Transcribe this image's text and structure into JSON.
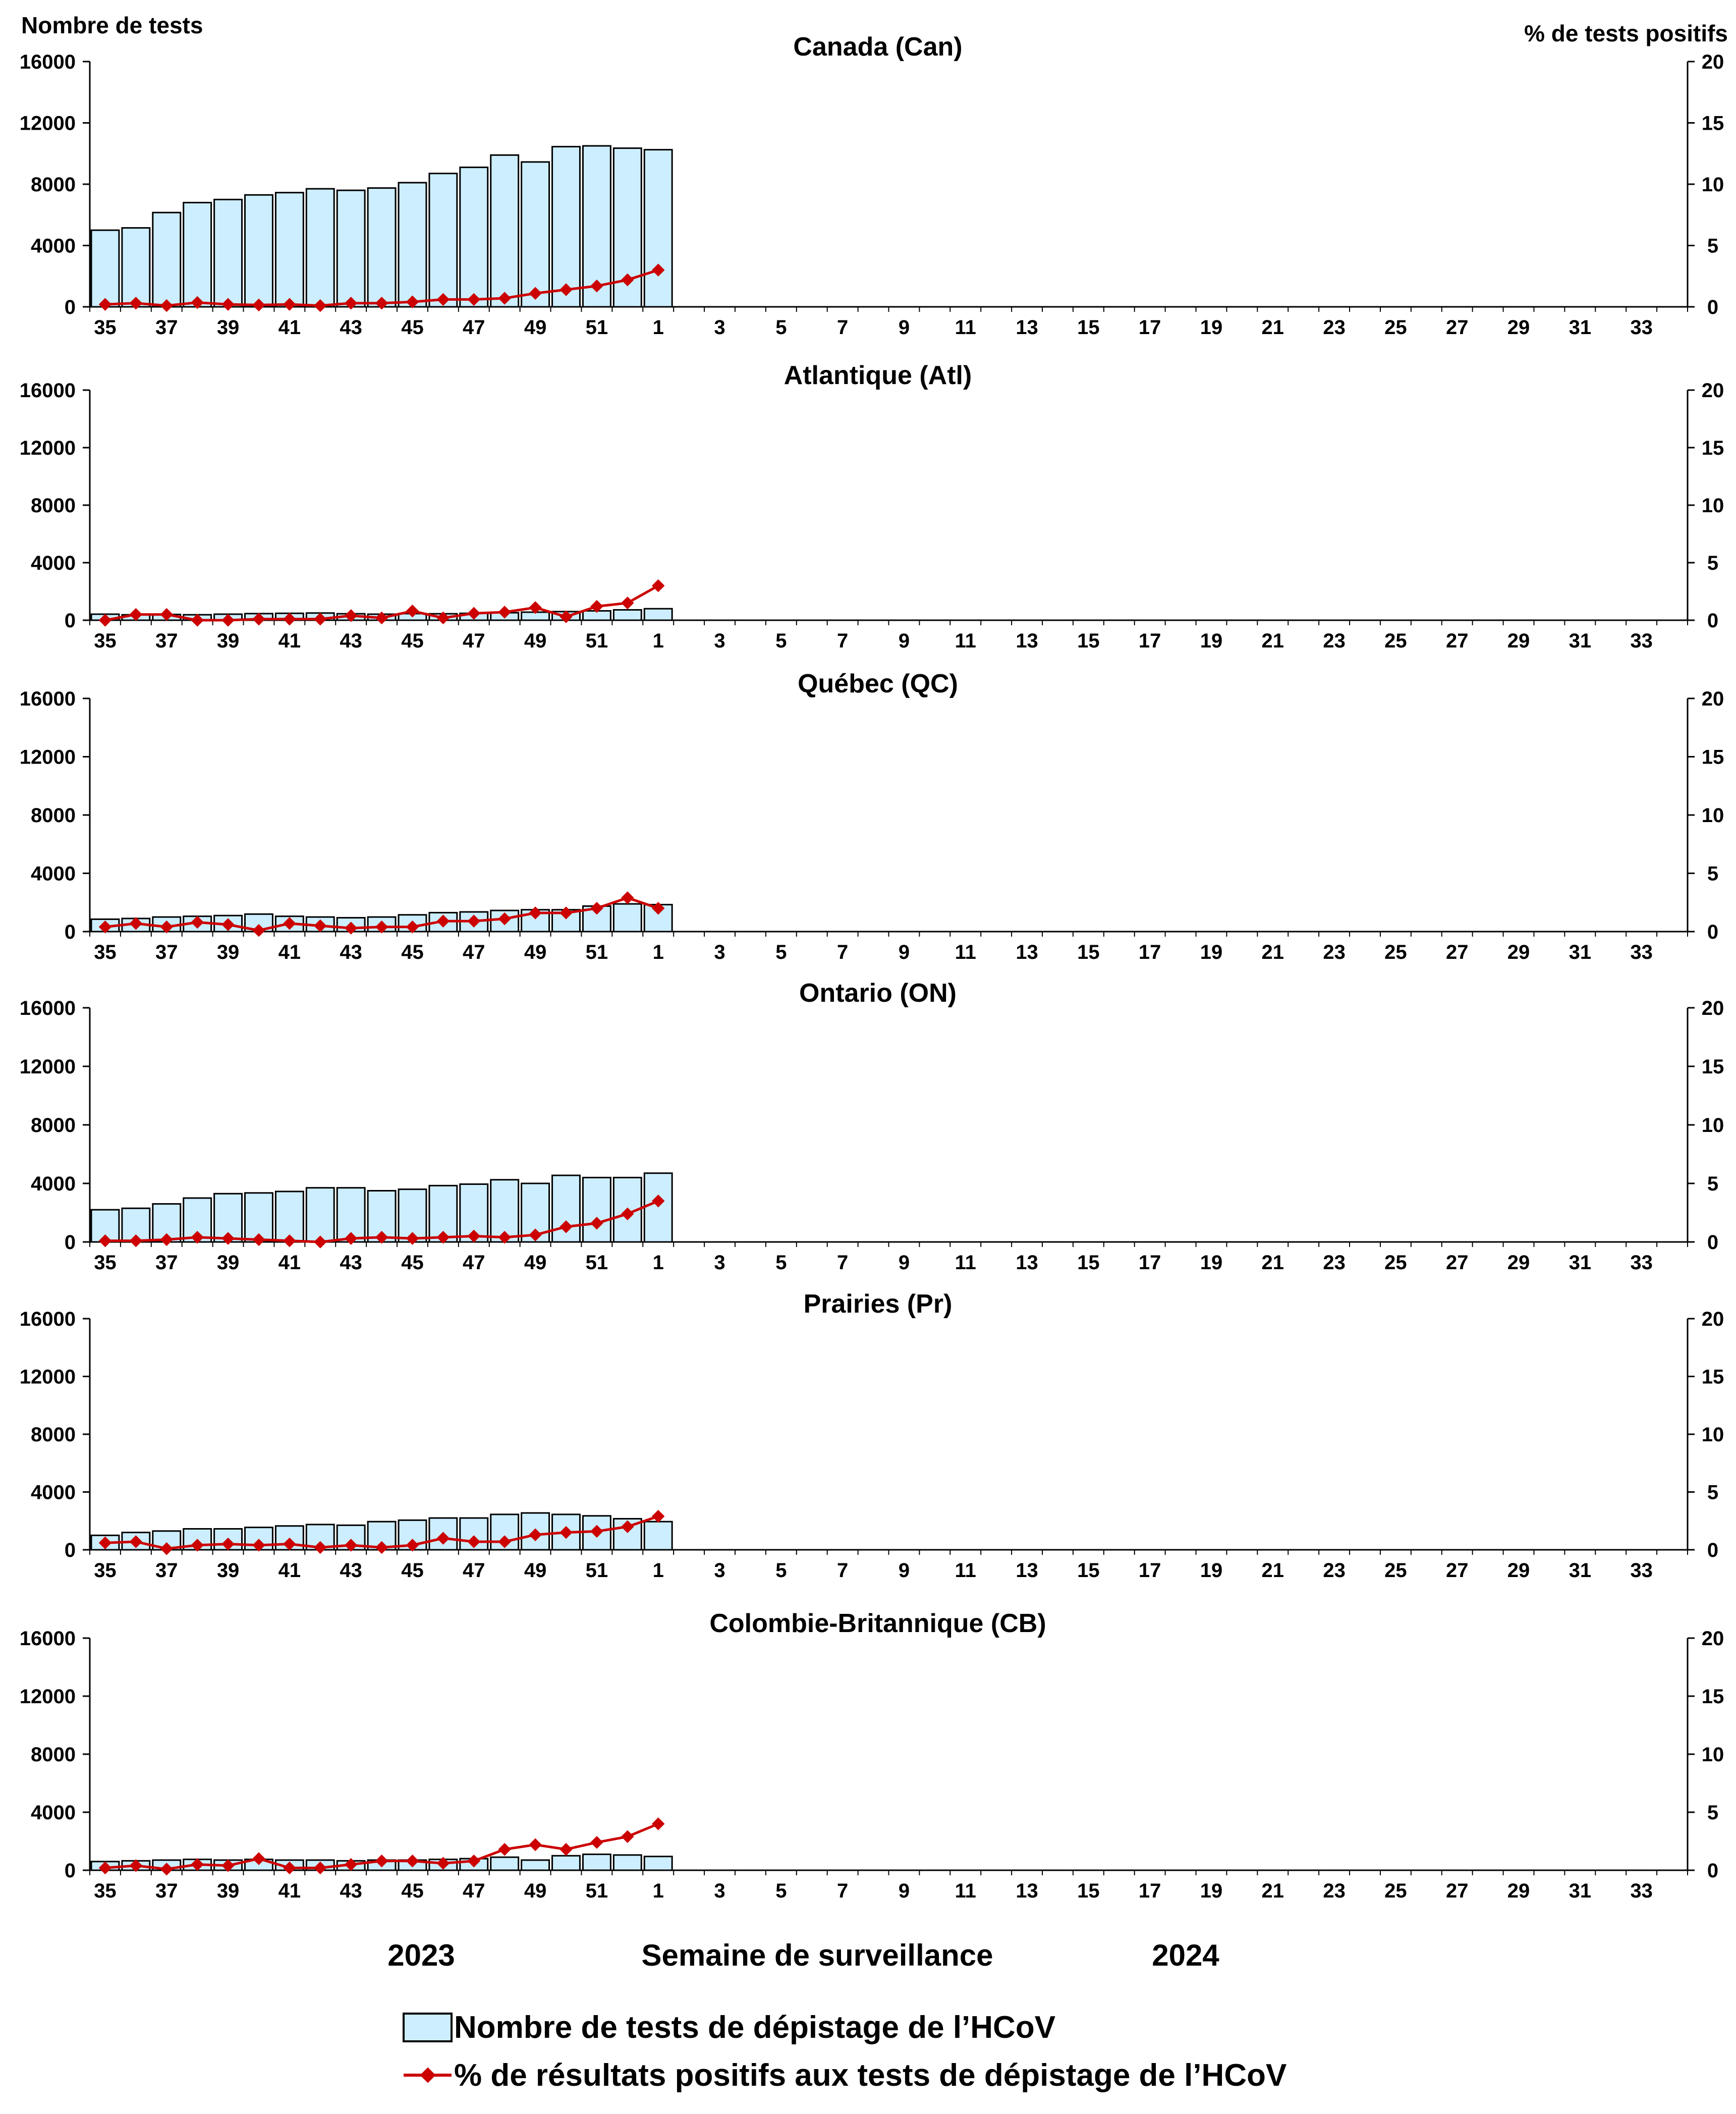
{
  "labels": {
    "left_axis_title": "Nombre de tests",
    "right_axis_title": "% de tests positifs",
    "x_axis_title": "Semaine de surveillance",
    "year_start": "2023",
    "year_end": "2024"
  },
  "legend": {
    "bars": "Nombre de tests de dépistage de l’HCoV",
    "line": "% de résultats positifs aux tests de dépistage de l’HCoV"
  },
  "colors": {
    "bar_fill": "#CCEEFF",
    "bar_stroke": "#000000",
    "line": "#CC0000",
    "axis": "#000000"
  },
  "chart_data": [
    {
      "type": "bar",
      "title": "Canada (Can)",
      "week_labels": [
        "35",
        "37",
        "39",
        "41",
        "43",
        "45",
        "47",
        "49",
        "51",
        "1",
        "3",
        "5",
        "7",
        "9",
        "11",
        "13",
        "15",
        "17",
        "19",
        "21",
        "23",
        "25",
        "27",
        "29",
        "31",
        "33"
      ],
      "weeks": [
        "35",
        "36",
        "37",
        "38",
        "39",
        "40",
        "41",
        "42",
        "43",
        "44",
        "45",
        "46",
        "47",
        "48",
        "49",
        "50",
        "51",
        "52",
        "1"
      ],
      "yticks": [
        "0",
        "4000",
        "8000",
        "12000",
        "16000"
      ],
      "y2ticks": [
        "0",
        "5",
        "10",
        "15",
        "20"
      ],
      "ylim": [
        0,
        16000
      ],
      "y2lim": [
        0,
        20
      ],
      "tests": [
        5000,
        5150,
        6150,
        6800,
        7000,
        7300,
        7450,
        7700,
        7600,
        7750,
        8100,
        8700,
        9100,
        9900,
        9450,
        10450,
        10500,
        10350,
        10250
      ],
      "pct_positive": [
        0.2,
        0.3,
        0.1,
        0.35,
        0.2,
        0.15,
        0.2,
        0.1,
        0.3,
        0.3,
        0.4,
        0.6,
        0.6,
        0.7,
        1.1,
        1.4,
        1.7,
        2.2,
        3.0
      ]
    },
    {
      "type": "bar",
      "title": "Atlantique (Atl)",
      "week_labels": [
        "35",
        "37",
        "39",
        "41",
        "43",
        "45",
        "47",
        "49",
        "51",
        "1",
        "3",
        "5",
        "7",
        "9",
        "11",
        "13",
        "15",
        "17",
        "19",
        "21",
        "23",
        "25",
        "27",
        "29",
        "31",
        "33"
      ],
      "weeks": [
        "35",
        "36",
        "37",
        "38",
        "39",
        "40",
        "41",
        "42",
        "43",
        "44",
        "45",
        "46",
        "47",
        "48",
        "49",
        "50",
        "51",
        "52",
        "1"
      ],
      "yticks": [
        "0",
        "4000",
        "8000",
        "12000",
        "16000"
      ],
      "y2ticks": [
        "0",
        "5",
        "10",
        "15",
        "20"
      ],
      "ylim": [
        0,
        16000
      ],
      "y2lim": [
        0,
        20
      ],
      "tests": [
        420,
        380,
        400,
        380,
        420,
        460,
        480,
        500,
        450,
        420,
        460,
        450,
        480,
        520,
        560,
        600,
        650,
        720,
        800
      ],
      "pct_positive": [
        0,
        0.5,
        0.5,
        0,
        0,
        0.1,
        0.1,
        0.1,
        0.4,
        0.2,
        0.8,
        0.2,
        0.6,
        0.7,
        1.1,
        0.3,
        1.2,
        1.5,
        3.0
      ]
    },
    {
      "type": "bar",
      "title": "Québec (QC)",
      "week_labels": [
        "35",
        "37",
        "39",
        "41",
        "43",
        "45",
        "47",
        "49",
        "51",
        "1",
        "3",
        "5",
        "7",
        "9",
        "11",
        "13",
        "15",
        "17",
        "19",
        "21",
        "23",
        "25",
        "27",
        "29",
        "31",
        "33"
      ],
      "weeks": [
        "35",
        "36",
        "37",
        "38",
        "39",
        "40",
        "41",
        "42",
        "43",
        "44",
        "45",
        "46",
        "47",
        "48",
        "49",
        "50",
        "51",
        "52",
        "1"
      ],
      "yticks": [
        "0",
        "4000",
        "8000",
        "12000",
        "16000"
      ],
      "y2ticks": [
        "0",
        "5",
        "10",
        "15",
        "20"
      ],
      "ylim": [
        0,
        16000
      ],
      "y2lim": [
        0,
        20
      ],
      "tests": [
        850,
        900,
        1000,
        1050,
        1100,
        1200,
        1050,
        1000,
        950,
        1000,
        1150,
        1300,
        1350,
        1450,
        1500,
        1500,
        1750,
        1900,
        1850
      ],
      "pct_positive": [
        0.4,
        0.7,
        0.4,
        0.8,
        0.6,
        0.1,
        0.7,
        0.5,
        0.3,
        0.4,
        0.4,
        0.9,
        0.9,
        1.1,
        1.6,
        1.6,
        2.0,
        2.9,
        2.0
      ]
    },
    {
      "type": "bar",
      "title": "Ontario (ON)",
      "week_labels": [
        "35",
        "37",
        "39",
        "41",
        "43",
        "45",
        "47",
        "49",
        "51",
        "1",
        "3",
        "5",
        "7",
        "9",
        "11",
        "13",
        "15",
        "17",
        "19",
        "21",
        "23",
        "25",
        "27",
        "29",
        "31",
        "33"
      ],
      "weeks": [
        "35",
        "36",
        "37",
        "38",
        "39",
        "40",
        "41",
        "42",
        "43",
        "44",
        "45",
        "46",
        "47",
        "48",
        "49",
        "50",
        "51",
        "52",
        "1"
      ],
      "yticks": [
        "0",
        "4000",
        "8000",
        "12000",
        "16000"
      ],
      "y2ticks": [
        "0",
        "5",
        "10",
        "15",
        "20"
      ],
      "ylim": [
        0,
        16000
      ],
      "y2lim": [
        0,
        20
      ],
      "tests": [
        2200,
        2300,
        2600,
        3000,
        3300,
        3350,
        3450,
        3700,
        3700,
        3500,
        3600,
        3850,
        3950,
        4250,
        4000,
        4550,
        4400,
        4400,
        4700
      ],
      "pct_positive": [
        0.1,
        0.1,
        0.2,
        0.4,
        0.3,
        0.2,
        0.1,
        0.0,
        0.3,
        0.4,
        0.3,
        0.4,
        0.5,
        0.4,
        0.6,
        1.3,
        1.6,
        2.4,
        3.5
      ]
    },
    {
      "type": "bar",
      "title": "Prairies (Pr)",
      "week_labels": [
        "35",
        "37",
        "39",
        "41",
        "43",
        "45",
        "47",
        "49",
        "51",
        "1",
        "3",
        "5",
        "7",
        "9",
        "11",
        "13",
        "15",
        "17",
        "19",
        "21",
        "23",
        "25",
        "27",
        "29",
        "31",
        "33"
      ],
      "weeks": [
        "35",
        "36",
        "37",
        "38",
        "39",
        "40",
        "41",
        "42",
        "43",
        "44",
        "45",
        "46",
        "47",
        "48",
        "49",
        "50",
        "51",
        "52",
        "1"
      ],
      "yticks": [
        "0",
        "4000",
        "8000",
        "12000",
        "16000"
      ],
      "y2ticks": [
        "0",
        "5",
        "10",
        "15",
        "20"
      ],
      "ylim": [
        0,
        16000
      ],
      "y2lim": [
        0,
        20
      ],
      "tests": [
        1000,
        1200,
        1300,
        1450,
        1450,
        1550,
        1650,
        1750,
        1700,
        1950,
        2050,
        2200,
        2200,
        2450,
        2550,
        2450,
        2350,
        2150,
        1950
      ],
      "pct_positive": [
        0.6,
        0.7,
        0.1,
        0.4,
        0.5,
        0.4,
        0.5,
        0.2,
        0.4,
        0.2,
        0.4,
        1.0,
        0.7,
        0.7,
        1.3,
        1.5,
        1.6,
        2.0,
        2.9
      ]
    },
    {
      "type": "bar",
      "title": "Colombie-Britannique (CB)",
      "week_labels": [
        "35",
        "37",
        "39",
        "41",
        "43",
        "45",
        "47",
        "49",
        "51",
        "1",
        "3",
        "5",
        "7",
        "9",
        "11",
        "13",
        "15",
        "17",
        "19",
        "21",
        "23",
        "25",
        "27",
        "29",
        "31",
        "33"
      ],
      "weeks": [
        "35",
        "36",
        "37",
        "38",
        "39",
        "40",
        "41",
        "42",
        "43",
        "44",
        "45",
        "46",
        "47",
        "48",
        "49",
        "50",
        "51",
        "52",
        "1"
      ],
      "yticks": [
        "0",
        "4000",
        "8000",
        "12000",
        "16000"
      ],
      "y2ticks": [
        "0",
        "5",
        "10",
        "15",
        "20"
      ],
      "ylim": [
        0,
        16000
      ],
      "y2lim": [
        0,
        20
      ],
      "tests": [
        600,
        650,
        700,
        750,
        700,
        750,
        700,
        700,
        650,
        700,
        700,
        750,
        800,
        900,
        700,
        1000,
        1100,
        1050,
        950
      ],
      "pct_positive": [
        0.2,
        0.4,
        0.1,
        0.5,
        0.4,
        1.0,
        0.2,
        0.2,
        0.5,
        0.8,
        0.8,
        0.6,
        0.8,
        1.8,
        2.2,
        1.8,
        2.4,
        2.9,
        4.0
      ]
    }
  ]
}
